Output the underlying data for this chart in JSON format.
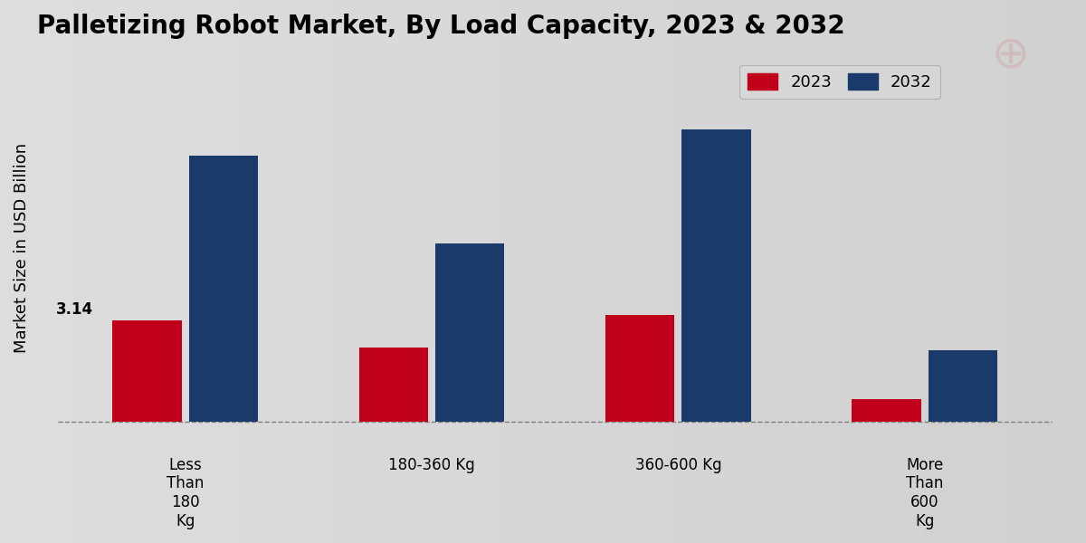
{
  "title": "Palletizing Robot Market, By Load Capacity, 2023 & 2032",
  "ylabel": "Market Size in USD Billion",
  "categories": [
    "Less\nThan\n180\nKg",
    "180-360 Kg",
    "360-600 Kg",
    "More\nThan\n600\nKg"
  ],
  "values_2023": [
    3.14,
    2.3,
    3.3,
    0.7
  ],
  "values_2032": [
    8.2,
    5.5,
    9.0,
    2.2
  ],
  "color_2023": "#c0001a",
  "color_2032": "#1a3a6b",
  "bar_annotation": "3.14",
  "bar_annotation_index": 0,
  "bg_left": "#dcdcdc",
  "bg_right": "#c8c8c8",
  "title_fontsize": 20,
  "legend_fontsize": 13,
  "ylabel_fontsize": 13,
  "tick_fontsize": 12,
  "annotation_fontsize": 12,
  "dashed_line_y": 0,
  "ylim": [
    -0.8,
    11.5
  ],
  "bar_width": 0.28,
  "bar_gap": 0.03
}
